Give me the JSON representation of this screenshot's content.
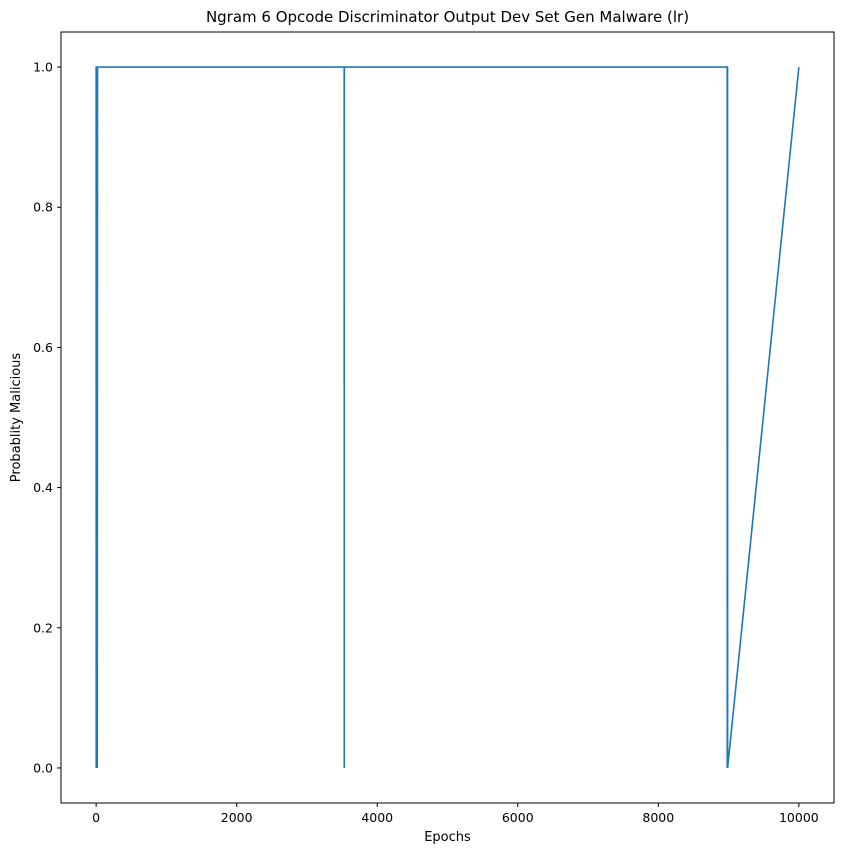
{
  "chart_data": {
    "type": "line",
    "title": "Ngram 6 Opcode Discriminator Output Dev Set Gen Malware (lr)",
    "xlabel": "Epochs",
    "ylabel": "Probablity Malicious",
    "xlim": [
      -500,
      10500
    ],
    "ylim": [
      -0.05,
      1.05
    ],
    "x_ticks": [
      0,
      2000,
      4000,
      6000,
      8000,
      10000
    ],
    "y_ticks": [
      0.0,
      0.2,
      0.4,
      0.6,
      0.8,
      1.0
    ],
    "x_tick_labels": [
      "0",
      "2000",
      "4000",
      "6000",
      "8000",
      "10000"
    ],
    "y_tick_labels": [
      "0.0",
      "0.2",
      "0.4",
      "0.6",
      "0.8",
      "1.0"
    ],
    "grid": false,
    "legend": "none",
    "series": [
      {
        "color": "#1f77b4",
        "x": [
          0,
          1,
          2,
          5,
          6,
          10,
          11,
          15,
          16,
          20,
          21,
          3530,
          3531,
          3532,
          8980,
          8981,
          8982,
          8985,
          8986,
          10000
        ],
        "y": [
          1.0,
          0.0,
          1.0,
          1.0,
          0.0,
          1.0,
          0.0,
          1.0,
          0.0,
          1.0,
          1.0,
          1.0,
          0.0,
          1.0,
          1.0,
          0.0,
          1.0,
          1.0,
          0.0,
          1.0
        ]
      }
    ]
  }
}
